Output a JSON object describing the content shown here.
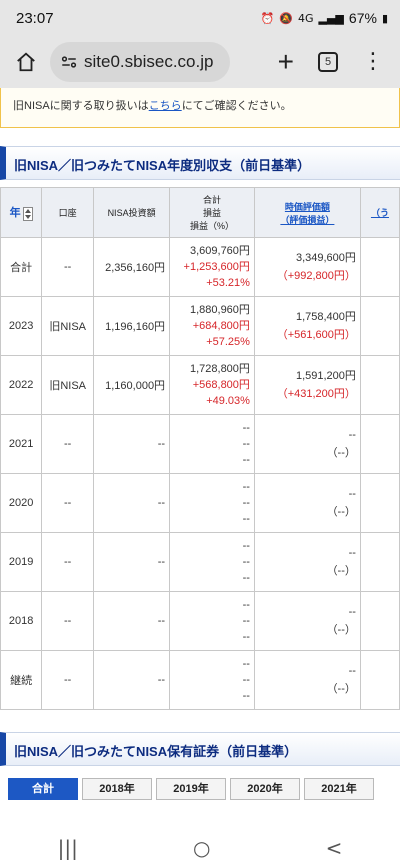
{
  "status": {
    "time": "23:07",
    "signal": "4G",
    "battery": "67%"
  },
  "browser": {
    "url": "site0.sbisec.co.jp",
    "tab_count": "5"
  },
  "notice": {
    "prefix": "旧NISAに関する取り扱いは",
    "link": "こちら",
    "suffix": "にてご確認ください。"
  },
  "section1": {
    "title": "旧NISA／旧つみたてNISA年度別収支（前日基準）"
  },
  "table": {
    "headers": {
      "year": "年",
      "account": "口座",
      "investment": "NISA投資額",
      "total_l1": "合計",
      "total_l2": "損益",
      "total_l3": "損益（%）",
      "value_l1": "時価評価額",
      "value_l2": "（評価損益）",
      "extra": "（う"
    },
    "rows": [
      {
        "year": "合計",
        "account": "--",
        "investment": "2,356,160円",
        "total": "3,609,760円",
        "gain": "+1,253,600円",
        "pct": "+53.21%",
        "value": "3,349,600円",
        "value_gain": "（+992,800円）"
      },
      {
        "year": "2023",
        "account": "旧NISA",
        "investment": "1,196,160円",
        "total": "1,880,960円",
        "gain": "+684,800円",
        "pct": "+57.25%",
        "value": "1,758,400円",
        "value_gain": "（+561,600円）"
      },
      {
        "year": "2022",
        "account": "旧NISA",
        "investment": "1,160,000円",
        "total": "1,728,800円",
        "gain": "+568,800円",
        "pct": "+49.03%",
        "value": "1,591,200円",
        "value_gain": "（+431,200円）"
      },
      {
        "year": "2021",
        "account": "--",
        "investment": "--",
        "total": "--",
        "gain": "--",
        "pct": "--",
        "value": "--",
        "value_gain": "（--）"
      },
      {
        "year": "2020",
        "account": "--",
        "investment": "--",
        "total": "--",
        "gain": "--",
        "pct": "--",
        "value": "--",
        "value_gain": "（--）"
      },
      {
        "year": "2019",
        "account": "--",
        "investment": "--",
        "total": "--",
        "gain": "--",
        "pct": "--",
        "value": "--",
        "value_gain": "（--）"
      },
      {
        "year": "2018",
        "account": "--",
        "investment": "--",
        "total": "--",
        "gain": "--",
        "pct": "--",
        "value": "--",
        "value_gain": "（--）"
      },
      {
        "year": "継続",
        "account": "--",
        "investment": "--",
        "total": "--",
        "gain": "--",
        "pct": "--",
        "value": "--",
        "value_gain": "（--）"
      }
    ]
  },
  "section2": {
    "title": "旧NISA／旧つみたてNISA保有証券（前日基準）"
  },
  "tabs": [
    "合計",
    "2018年",
    "2019年",
    "2020年",
    "2021年"
  ],
  "nav": {
    "recent": "|||",
    "home": "○",
    "back": "<"
  }
}
